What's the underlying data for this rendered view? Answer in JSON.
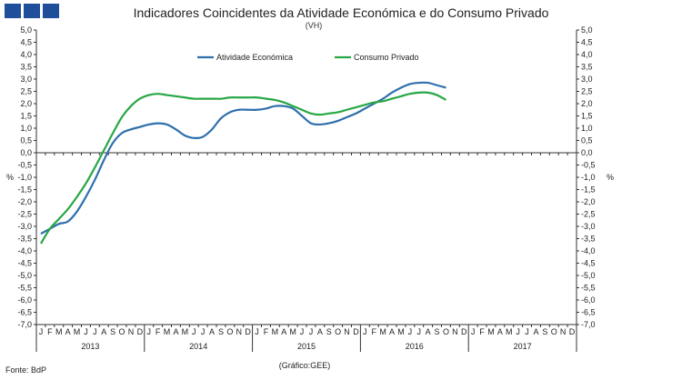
{
  "header": {
    "title": "Indicadores Coincidentes da Atividade Económica e do Consumo Privado",
    "subtitle": "(VH)"
  },
  "footer": {
    "source": "Fonte: BdP",
    "credit": "(Gráfico:GEE)"
  },
  "colors": {
    "atividade": "#2e6fad",
    "consumo": "#28a745",
    "logo": "#1f4e9a",
    "axis": "#333333"
  },
  "chart_data": {
    "type": "line",
    "title": "Indicadores Coincidentes da Atividade Económica e do Consumo Privado",
    "subtitle": "(VH)",
    "ylabel_left": "%",
    "ylabel_right": "%",
    "ylim": [
      -7.0,
      5.0
    ],
    "ytick_step": 0.5,
    "ytick_labels": [
      "5,0",
      "4,5",
      "4,0",
      "3,5",
      "3,0",
      "2,5",
      "2,0",
      "1,5",
      "1,0",
      "0,5",
      "0,0",
      "-0,5",
      "-1,0",
      "-1,5",
      "-2,0",
      "-2,5",
      "-3,0",
      "-3,5",
      "-4,0",
      "-4,5",
      "-5,0",
      "-5,5",
      "-6,0",
      "-6,5",
      "-7,0"
    ],
    "months": [
      "J",
      "F",
      "M",
      "A",
      "M",
      "J",
      "J",
      "A",
      "S",
      "O",
      "N",
      "D"
    ],
    "years": [
      "2013",
      "2014",
      "2015",
      "2016",
      "2017"
    ],
    "legend": [
      "Atividade Económica",
      "Consumo Privado"
    ],
    "legend_position": "top-center",
    "series": [
      {
        "name": "Atividade Económica",
        "values": [
          -3.3,
          -3.1,
          -2.9,
          -2.8,
          -2.4,
          -1.8,
          -1.1,
          -0.3,
          0.4,
          0.8,
          0.95,
          1.05,
          1.15,
          1.2,
          1.15,
          0.95,
          0.7,
          0.6,
          0.65,
          0.95,
          1.4,
          1.65,
          1.75,
          1.75,
          1.75,
          1.8,
          1.9,
          1.9,
          1.8,
          1.5,
          1.2,
          1.15,
          1.2,
          1.3,
          1.45,
          1.6,
          1.8,
          2.0,
          2.2,
          2.45,
          2.65,
          2.8,
          2.85,
          2.85,
          2.75,
          2.65
        ]
      },
      {
        "name": "Consumo Privado",
        "values": [
          -3.7,
          -3.1,
          -2.7,
          -2.3,
          -1.8,
          -1.25,
          -0.6,
          0.1,
          0.8,
          1.45,
          1.9,
          2.2,
          2.35,
          2.4,
          2.35,
          2.3,
          2.25,
          2.2,
          2.2,
          2.2,
          2.2,
          2.25,
          2.25,
          2.25,
          2.25,
          2.2,
          2.15,
          2.05,
          1.9,
          1.75,
          1.6,
          1.55,
          1.6,
          1.65,
          1.75,
          1.85,
          1.95,
          2.05,
          2.1,
          2.2,
          2.3,
          2.4,
          2.45,
          2.45,
          2.35,
          2.15
        ]
      }
    ]
  }
}
